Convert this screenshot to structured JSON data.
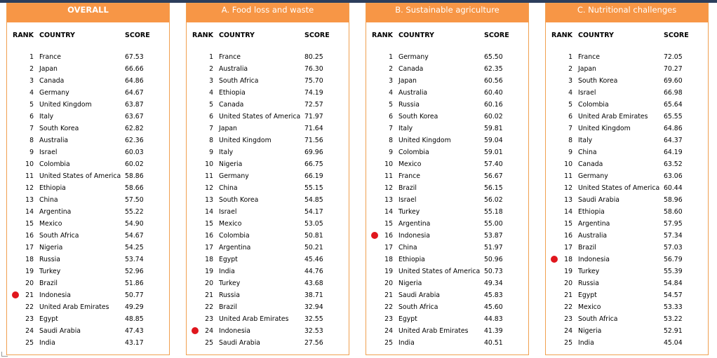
{
  "columns": {
    "rank": "RANK",
    "country": "COUNTRY",
    "score": "SCORE"
  },
  "highlight_color": "#e0161d",
  "header_color": "#f79646",
  "panels": [
    {
      "title": "OVERALL",
      "rows": [
        {
          "rank": "1",
          "country": "France",
          "score": "67.53"
        },
        {
          "rank": "2",
          "country": "Japan",
          "score": "66.66"
        },
        {
          "rank": "3",
          "country": "Canada",
          "score": "64.86"
        },
        {
          "rank": "4",
          "country": "Germany",
          "score": "64.67"
        },
        {
          "rank": "5",
          "country": "United Kingdom",
          "score": "63.87"
        },
        {
          "rank": "6",
          "country": "Italy",
          "score": "63.67"
        },
        {
          "rank": "7",
          "country": "South Korea",
          "score": "62.82"
        },
        {
          "rank": "8",
          "country": "Australia",
          "score": "62.36"
        },
        {
          "rank": "9",
          "country": "Israel",
          "score": "60.03"
        },
        {
          "rank": "10",
          "country": "Colombia",
          "score": "60.02"
        },
        {
          "rank": "11",
          "country": "United States of America",
          "score": "58.86"
        },
        {
          "rank": "12",
          "country": "Ethiopia",
          "score": "58.66"
        },
        {
          "rank": "13",
          "country": "China",
          "score": "57.50"
        },
        {
          "rank": "14",
          "country": "Argentina",
          "score": "55.22"
        },
        {
          "rank": "15",
          "country": "Mexico",
          "score": "54.90"
        },
        {
          "rank": "16",
          "country": "South Africa",
          "score": "54.67"
        },
        {
          "rank": "17",
          "country": "Nigeria",
          "score": "54.25"
        },
        {
          "rank": "18",
          "country": "Russia",
          "score": "53.74"
        },
        {
          "rank": "19",
          "country": "Turkey",
          "score": "52.96"
        },
        {
          "rank": "20",
          "country": "Brazil",
          "score": "51.86"
        },
        {
          "rank": "21",
          "country": "Indonesia",
          "score": "50.77",
          "highlight": true
        },
        {
          "rank": "22",
          "country": "United Arab Emirates",
          "score": "49.29"
        },
        {
          "rank": "23",
          "country": "Egypt",
          "score": "48.85"
        },
        {
          "rank": "24",
          "country": "Saudi Arabia",
          "score": "47.43"
        },
        {
          "rank": "25",
          "country": "India",
          "score": "43.17"
        }
      ]
    },
    {
      "title": "A. Food loss and waste",
      "rows": [
        {
          "rank": "1",
          "country": "France",
          "score": "80.25"
        },
        {
          "rank": "2",
          "country": "Australia",
          "score": "76.30"
        },
        {
          "rank": "3",
          "country": "South Africa",
          "score": "75.70"
        },
        {
          "rank": "4",
          "country": "Ethiopia",
          "score": "74.19"
        },
        {
          "rank": "5",
          "country": "Canada",
          "score": "72.57"
        },
        {
          "rank": "6",
          "country": "United States of America",
          "score": "71.97"
        },
        {
          "rank": "7",
          "country": "Japan",
          "score": "71.64"
        },
        {
          "rank": "8",
          "country": "United Kingdom",
          "score": "71.56"
        },
        {
          "rank": "9",
          "country": "Italy",
          "score": "69.96"
        },
        {
          "rank": "10",
          "country": "Nigeria",
          "score": "66.75"
        },
        {
          "rank": "11",
          "country": "Germany",
          "score": "66.19"
        },
        {
          "rank": "12",
          "country": "China",
          "score": "55.15"
        },
        {
          "rank": "13",
          "country": "South Korea",
          "score": "54.85"
        },
        {
          "rank": "14",
          "country": "Israel",
          "score": "54.17"
        },
        {
          "rank": "15",
          "country": "Mexico",
          "score": "53.05"
        },
        {
          "rank": "16",
          "country": "Colombia",
          "score": "50.81"
        },
        {
          "rank": "17",
          "country": "Argentina",
          "score": "50.21"
        },
        {
          "rank": "18",
          "country": "Egypt",
          "score": "45.46"
        },
        {
          "rank": "19",
          "country": "India",
          "score": "44.76"
        },
        {
          "rank": "20",
          "country": "Turkey",
          "score": "43.68"
        },
        {
          "rank": "21",
          "country": "Russia",
          "score": "38.71"
        },
        {
          "rank": "22",
          "country": "Brazil",
          "score": "32.94"
        },
        {
          "rank": "23",
          "country": "United Arab Emirates",
          "score": "32.55"
        },
        {
          "rank": "24",
          "country": "Indonesia",
          "score": "32.53",
          "highlight": true
        },
        {
          "rank": "25",
          "country": "Saudi Arabia",
          "score": "27.56"
        }
      ]
    },
    {
      "title": "B. Sustainable agriculture",
      "rows": [
        {
          "rank": "1",
          "country": "Germany",
          "score": "65.50"
        },
        {
          "rank": "2",
          "country": "Canada",
          "score": "62.35"
        },
        {
          "rank": "3",
          "country": "Japan",
          "score": "60.56"
        },
        {
          "rank": "4",
          "country": "Australia",
          "score": "60.40"
        },
        {
          "rank": "5",
          "country": "Russia",
          "score": "60.16"
        },
        {
          "rank": "6",
          "country": "South Korea",
          "score": "60.02"
        },
        {
          "rank": "7",
          "country": "Italy",
          "score": "59.81"
        },
        {
          "rank": "8",
          "country": "United Kingdom",
          "score": "59.04"
        },
        {
          "rank": "9",
          "country": "Colombia",
          "score": "59.01"
        },
        {
          "rank": "10",
          "country": "Mexico",
          "score": "57.40"
        },
        {
          "rank": "11",
          "country": "France",
          "score": "56.67"
        },
        {
          "rank": "12",
          "country": "Brazil",
          "score": "56.15"
        },
        {
          "rank": "13",
          "country": "Israel",
          "score": "56.02"
        },
        {
          "rank": "14",
          "country": "Turkey",
          "score": "55.18"
        },
        {
          "rank": "15",
          "country": "Argentina",
          "score": "55.00"
        },
        {
          "rank": "16",
          "country": "Indonesia",
          "score": "53.87",
          "highlight": true
        },
        {
          "rank": "17",
          "country": "China",
          "score": "51.97"
        },
        {
          "rank": "18",
          "country": "Ethiopia",
          "score": "50.96"
        },
        {
          "rank": "19",
          "country": "United States of America",
          "score": "50.73"
        },
        {
          "rank": "20",
          "country": "Nigeria",
          "score": "49.34"
        },
        {
          "rank": "21",
          "country": "Saudi Arabia",
          "score": "45.83"
        },
        {
          "rank": "22",
          "country": "South Africa",
          "score": "45.60"
        },
        {
          "rank": "23",
          "country": "Egypt",
          "score": "44.83"
        },
        {
          "rank": "24",
          "country": "United Arab Emirates",
          "score": "41.39"
        },
        {
          "rank": "25",
          "country": "India",
          "score": "40.51"
        }
      ]
    },
    {
      "title": "C. Nutritional challenges",
      "rows": [
        {
          "rank": "1",
          "country": "France",
          "score": "72.05"
        },
        {
          "rank": "2",
          "country": "Japan",
          "score": "70.27"
        },
        {
          "rank": "3",
          "country": "South Korea",
          "score": "69.60"
        },
        {
          "rank": "4",
          "country": "Israel",
          "score": "66.98"
        },
        {
          "rank": "5",
          "country": "Colombia",
          "score": "65.64"
        },
        {
          "rank": "6",
          "country": "United Arab Emirates",
          "score": "65.55"
        },
        {
          "rank": "7",
          "country": "United Kingdom",
          "score": "64.86"
        },
        {
          "rank": "8",
          "country": "Italy",
          "score": "64.37"
        },
        {
          "rank": "9",
          "country": "China",
          "score": "64.19"
        },
        {
          "rank": "10",
          "country": "Canada",
          "score": "63.52"
        },
        {
          "rank": "11",
          "country": "Germany",
          "score": "63.06"
        },
        {
          "rank": "12",
          "country": "United States of America",
          "score": "60.44"
        },
        {
          "rank": "13",
          "country": "Saudi Arabia",
          "score": "58.96"
        },
        {
          "rank": "14",
          "country": "Ethiopia",
          "score": "58.60"
        },
        {
          "rank": "15",
          "country": "Argentina",
          "score": "57.95"
        },
        {
          "rank": "16",
          "country": "Australia",
          "score": "57.34"
        },
        {
          "rank": "17",
          "country": "Brazil",
          "score": "57.03"
        },
        {
          "rank": "18",
          "country": "Indonesia",
          "score": "56.79",
          "highlight": true
        },
        {
          "rank": "19",
          "country": "Turkey",
          "score": "55.39"
        },
        {
          "rank": "20",
          "country": "Russia",
          "score": "54.84"
        },
        {
          "rank": "21",
          "country": "Egypt",
          "score": "54.57"
        },
        {
          "rank": "22",
          "country": "Mexico",
          "score": "53.33"
        },
        {
          "rank": "23",
          "country": "South Africa",
          "score": "53.22"
        },
        {
          "rank": "24",
          "country": "Nigeria",
          "score": "52.91"
        },
        {
          "rank": "25",
          "country": "India",
          "score": "45.04"
        }
      ]
    }
  ]
}
